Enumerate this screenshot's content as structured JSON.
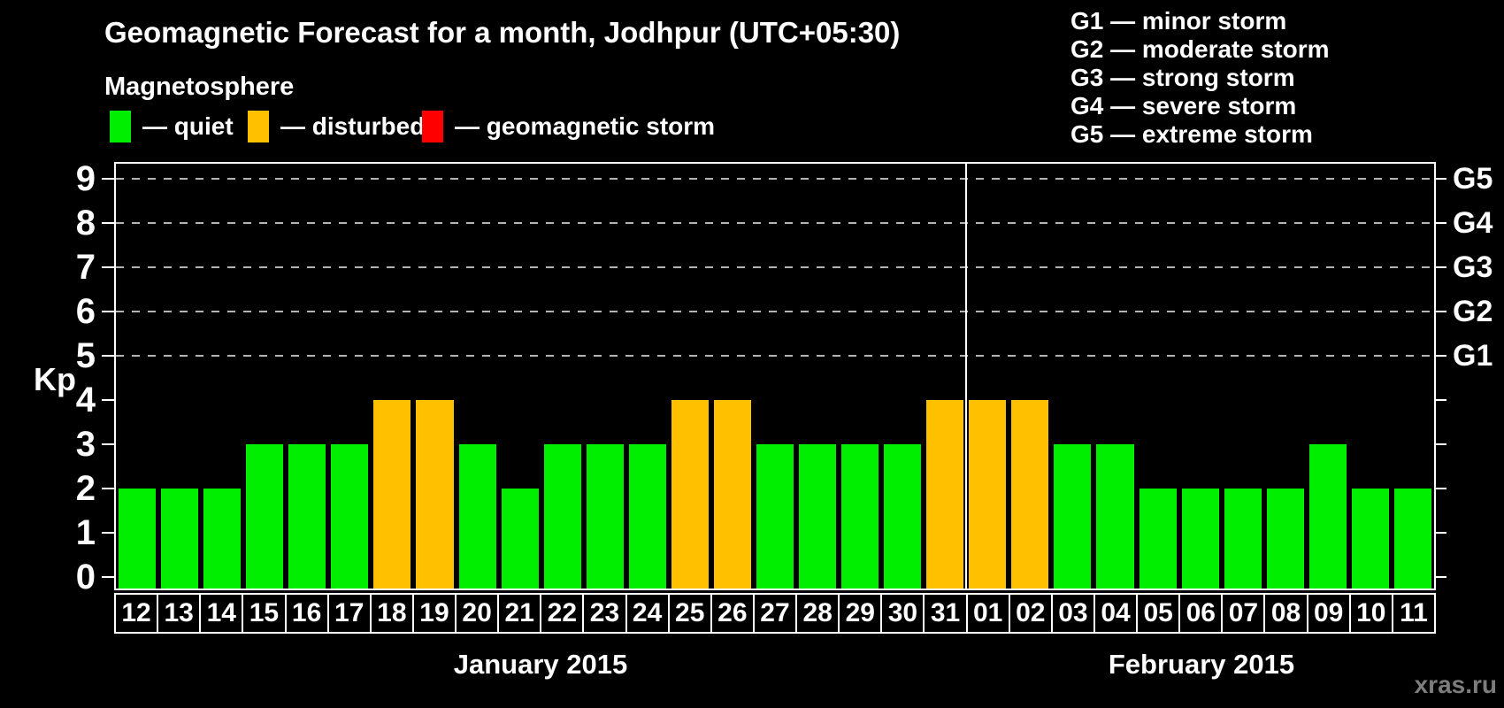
{
  "title": "Geomagnetic Forecast for a month, Jodhpur (UTC+05:30)",
  "subtitle": "Magnetosphere",
  "legend": {
    "items": [
      {
        "key": "quiet",
        "label": "— quiet",
        "color": "#00ee00"
      },
      {
        "key": "disturbed",
        "label": "— disturbed",
        "color": "#ffc000"
      },
      {
        "key": "storm",
        "label": "— geomagnetic storm",
        "color": "#ff0000"
      }
    ]
  },
  "storm_scale_legend": [
    "G1 — minor storm",
    "G2 — moderate storm",
    "G3 — strong storm",
    "G4 — severe storm",
    "G5 — extreme storm"
  ],
  "watermark": "xras.ru",
  "chart_data": {
    "type": "bar",
    "title": "Geomagnetic Forecast for a month, Jodhpur (UTC+05:30)",
    "ylabel": "Kp",
    "ylim": [
      0,
      9
    ],
    "yticks": [
      0,
      1,
      2,
      3,
      4,
      5,
      6,
      7,
      8,
      9
    ],
    "grid_levels": [
      5,
      6,
      7,
      8,
      9
    ],
    "right_axis": [
      {
        "kp": 5,
        "label": "G1"
      },
      {
        "kp": 6,
        "label": "G2"
      },
      {
        "kp": 7,
        "label": "G3"
      },
      {
        "kp": 8,
        "label": "G4"
      },
      {
        "kp": 9,
        "label": "G5"
      }
    ],
    "months": [
      {
        "label": "January 2015",
        "days": 20
      },
      {
        "label": "February 2015",
        "days": 11
      }
    ],
    "categories": [
      "12",
      "13",
      "14",
      "15",
      "16",
      "17",
      "18",
      "19",
      "20",
      "21",
      "22",
      "23",
      "24",
      "25",
      "26",
      "27",
      "28",
      "29",
      "30",
      "31",
      "01",
      "02",
      "03",
      "04",
      "05",
      "06",
      "07",
      "08",
      "09",
      "10",
      "11"
    ],
    "values": [
      2,
      2,
      2,
      3,
      3,
      3,
      4,
      4,
      3,
      2,
      3,
      3,
      3,
      4,
      4,
      3,
      3,
      3,
      3,
      4,
      4,
      4,
      3,
      3,
      2,
      2,
      2,
      2,
      3,
      2,
      2
    ],
    "statuses": [
      "quiet",
      "quiet",
      "quiet",
      "quiet",
      "quiet",
      "quiet",
      "disturbed",
      "disturbed",
      "quiet",
      "quiet",
      "quiet",
      "quiet",
      "quiet",
      "disturbed",
      "disturbed",
      "quiet",
      "quiet",
      "quiet",
      "quiet",
      "disturbed",
      "disturbed",
      "disturbed",
      "quiet",
      "quiet",
      "quiet",
      "quiet",
      "quiet",
      "quiet",
      "quiet",
      "quiet",
      "quiet"
    ],
    "status_colors": {
      "quiet": "#00ee00",
      "disturbed": "#ffc000",
      "storm": "#ff0000"
    }
  }
}
